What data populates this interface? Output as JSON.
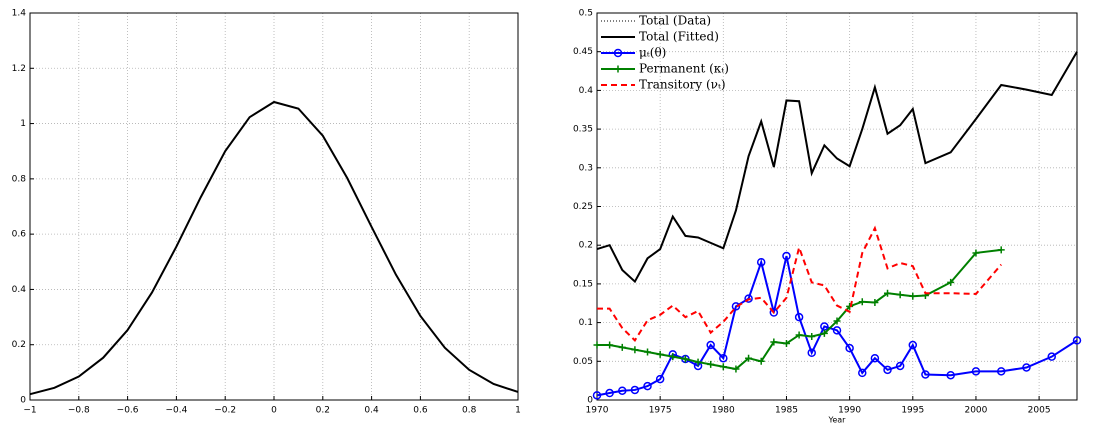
{
  "chart_data": [
    {
      "type": "line",
      "x": [
        -1,
        -0.9,
        -0.8,
        -0.7,
        -0.6,
        -0.5,
        -0.4,
        -0.3,
        -0.2,
        -0.1,
        0,
        0.1,
        0.2,
        0.3,
        0.4,
        0.5,
        0.6,
        0.7,
        0.8,
        0.9,
        1
      ],
      "series": [
        {
          "color": "#000000",
          "values": [
            0.021,
            0.044,
            0.085,
            0.153,
            0.253,
            0.389,
            0.555,
            0.734,
            0.9,
            1.023,
            1.078,
            1.054,
            0.956,
            0.803,
            0.626,
            0.453,
            0.304,
            0.189,
            0.109,
            0.058,
            0.029
          ]
        }
      ],
      "xlim": [
        -1,
        1
      ],
      "xticks": [
        {
          "value": -1,
          "label": "−1"
        },
        {
          "value": -0.8,
          "label": "−0.8"
        },
        {
          "value": -0.6,
          "label": "−0.6"
        },
        {
          "value": -0.4,
          "label": "−0.4"
        },
        {
          "value": -0.2,
          "label": "−0.2"
        },
        0,
        0.2,
        0.4,
        0.6,
        0.8,
        1
      ],
      "ylim": [
        0,
        1.4
      ],
      "yticks": [
        0,
        0.2,
        0.4,
        0.6,
        0.8,
        1,
        1.2,
        1.4
      ],
      "grid": true
    },
    {
      "type": "line",
      "x_label": "Year",
      "x": [
        1970,
        1971,
        1972,
        1973,
        1974,
        1975,
        1976,
        1977,
        1978,
        1979,
        1980,
        1981,
        1982,
        1983,
        1984,
        1985,
        1986,
        1987,
        1988,
        1989,
        1990,
        1991,
        1992,
        1993,
        1994,
        1995,
        1996,
        1998,
        2000,
        2002,
        2004,
        2006,
        2008
      ],
      "series": [
        {
          "name": "Total (Data)",
          "color": "#000000",
          "dash": "dotted",
          "values": [
            0.195,
            0.2,
            0.168,
            0.153,
            0.183,
            0.195,
            0.237,
            0.212,
            0.21,
            0.203,
            0.196,
            0.245,
            0.315,
            0.36,
            0.301,
            0.387,
            0.386,
            0.293,
            0.329,
            0.312,
            0.302,
            0.35,
            0.404,
            0.344,
            0.355,
            0.376,
            0.306,
            0.32,
            0.363,
            0.407,
            0.401,
            0.394,
            0.45
          ]
        },
        {
          "name": "Total (Fitted)",
          "color": "#000000",
          "dash": "solid",
          "values": [
            0.195,
            0.2,
            0.168,
            0.153,
            0.183,
            0.195,
            0.237,
            0.212,
            0.21,
            0.203,
            0.196,
            0.245,
            0.315,
            0.36,
            0.301,
            0.387,
            0.386,
            0.293,
            0.329,
            0.312,
            0.302,
            0.35,
            0.404,
            0.344,
            0.355,
            0.376,
            0.306,
            0.32,
            0.363,
            0.407,
            0.401,
            0.394,
            0.45
          ]
        },
        {
          "name": "μₜ(θ)",
          "color": "#0000ff",
          "dash": "solid",
          "marker": "circle",
          "values": [
            0.006,
            0.009,
            0.012,
            0.013,
            0.018,
            0.027,
            0.059,
            0.053,
            0.044,
            0.071,
            0.054,
            0.121,
            0.131,
            0.178,
            0.113,
            0.186,
            0.107,
            0.061,
            0.095,
            0.09,
            0.067,
            0.035,
            0.054,
            0.039,
            0.044,
            0.071,
            0.033,
            0.032,
            0.037,
            0.037,
            0.042,
            0.056,
            0.077
          ]
        },
        {
          "name": "Permanent (κₜ)",
          "color": "#008000",
          "dash": "solid",
          "marker": "plus",
          "values": [
            0.071,
            0.071,
            0.068,
            0.065,
            0.062,
            0.059,
            0.056,
            0.053,
            0.049,
            0.046,
            0.043,
            0.04,
            0.054,
            0.05,
            0.075,
            0.073,
            0.084,
            0.082,
            0.086,
            0.102,
            0.121,
            0.127,
            0.126,
            0.138,
            0.136,
            0.134,
            0.135,
            0.152,
            0.19,
            0.194,
            null,
            null,
            null
          ]
        },
        {
          "name": "Transitory (νₜ)",
          "color": "#ff0000",
          "dash": "dashed",
          "values": [
            0.118,
            0.118,
            0.093,
            0.077,
            0.103,
            0.11,
            0.122,
            0.107,
            0.115,
            0.087,
            0.101,
            0.12,
            0.13,
            0.132,
            0.113,
            0.132,
            0.197,
            0.152,
            0.148,
            0.122,
            0.114,
            0.19,
            0.222,
            0.17,
            0.177,
            0.173,
            0.138,
            0.138,
            0.137,
            0.175,
            null,
            null,
            null
          ]
        }
      ],
      "xlim": [
        1970,
        2008
      ],
      "xticks": [
        1970,
        1975,
        1980,
        1985,
        1990,
        1995,
        2000,
        2005
      ],
      "ylim": [
        0,
        0.5
      ],
      "yticks": [
        0,
        0.05,
        0.1,
        0.15,
        0.2,
        0.25,
        0.3,
        0.35,
        0.4,
        0.45,
        0.5
      ],
      "grid": true,
      "legend": "top-left"
    }
  ]
}
